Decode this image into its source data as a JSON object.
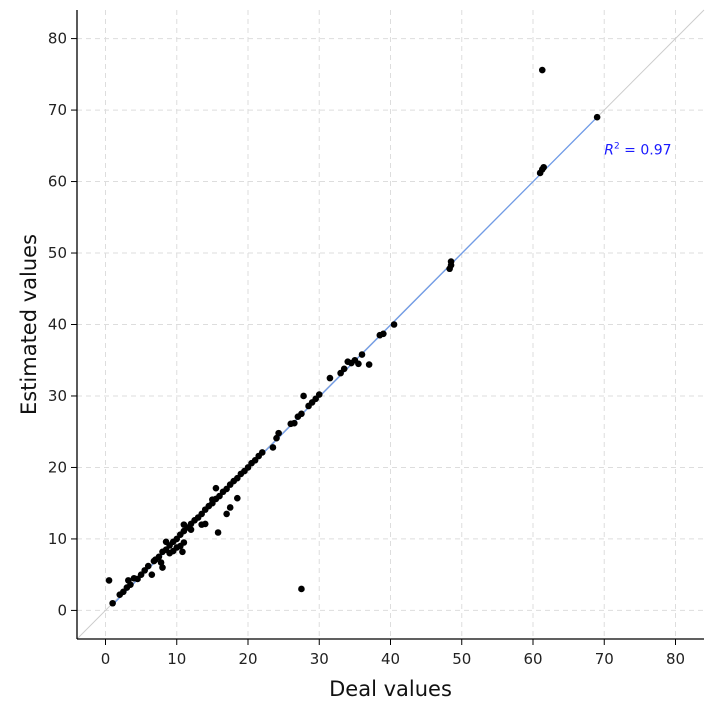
{
  "chart_data": {
    "type": "scatter",
    "xlabel": "Deal values",
    "ylabel": "Estimated values",
    "xlim": [
      -4,
      84
    ],
    "ylim": [
      -4,
      84
    ],
    "x_ticks": [
      0,
      10,
      20,
      30,
      40,
      50,
      60,
      70,
      80
    ],
    "y_ticks": [
      0,
      10,
      20,
      30,
      40,
      50,
      60,
      70,
      80
    ],
    "grid": true,
    "diagonal_reference": true,
    "fit_line": {
      "from": [
        1.2,
        1.0
      ],
      "to": [
        69,
        69
      ]
    },
    "annotation": {
      "prefix": "R",
      "sup": "2",
      "suffix": " = 0.97",
      "x": 70,
      "y": 64.5,
      "color": "#1a1aff"
    },
    "colors": {
      "points": "#000000",
      "fit": "#6f9be8",
      "diagonal": "#cccccc",
      "grid": "#dddddd"
    },
    "points": [
      [
        0.5,
        4.2
      ],
      [
        1.0,
        1.0
      ],
      [
        2.0,
        2.2
      ],
      [
        2.5,
        2.6
      ],
      [
        3.0,
        3.2
      ],
      [
        3.2,
        4.2
      ],
      [
        3.5,
        3.6
      ],
      [
        4.0,
        4.5
      ],
      [
        4.5,
        4.4
      ],
      [
        5.0,
        5.0
      ],
      [
        5.5,
        5.6
      ],
      [
        6.0,
        6.2
      ],
      [
        6.5,
        5.0
      ],
      [
        6.8,
        6.9
      ],
      [
        7.0,
        7.1
      ],
      [
        7.5,
        7.5
      ],
      [
        7.8,
        6.7
      ],
      [
        8.0,
        6.0
      ],
      [
        8.0,
        8.2
      ],
      [
        8.5,
        8.5
      ],
      [
        8.5,
        9.6
      ],
      [
        9.0,
        8.0
      ],
      [
        9.0,
        9.1
      ],
      [
        9.5,
        8.3
      ],
      [
        9.5,
        9.6
      ],
      [
        10.0,
        10.0
      ],
      [
        10.0,
        8.8
      ],
      [
        10.5,
        10.6
      ],
      [
        10.5,
        9.0
      ],
      [
        10.8,
        8.2
      ],
      [
        11.0,
        11.1
      ],
      [
        11.0,
        9.5
      ],
      [
        11.0,
        12.0
      ],
      [
        11.5,
        11.6
      ],
      [
        12.0,
        12.1
      ],
      [
        12.0,
        11.3
      ],
      [
        12.5,
        12.6
      ],
      [
        13.0,
        13.0
      ],
      [
        13.5,
        13.5
      ],
      [
        13.5,
        12.0
      ],
      [
        14.0,
        14.1
      ],
      [
        14.0,
        12.1
      ],
      [
        14.5,
        14.6
      ],
      [
        15.0,
        15.0
      ],
      [
        15.0,
        15.5
      ],
      [
        15.5,
        15.6
      ],
      [
        15.5,
        17.1
      ],
      [
        15.8,
        10.9
      ],
      [
        16.0,
        16.0
      ],
      [
        16.5,
        16.6
      ],
      [
        17.0,
        17.0
      ],
      [
        17.0,
        13.5
      ],
      [
        17.5,
        17.6
      ],
      [
        17.5,
        14.4
      ],
      [
        18.0,
        18.1
      ],
      [
        18.5,
        18.5
      ],
      [
        18.5,
        15.7
      ],
      [
        19.0,
        19.1
      ],
      [
        19.5,
        19.5
      ],
      [
        20.0,
        20.0
      ],
      [
        20.5,
        20.6
      ],
      [
        21.0,
        21.0
      ],
      [
        21.5,
        21.6
      ],
      [
        22.0,
        22.1
      ],
      [
        23.5,
        22.8
      ],
      [
        24.0,
        24.1
      ],
      [
        24.3,
        24.8
      ],
      [
        26.0,
        26.1
      ],
      [
        26.5,
        26.2
      ],
      [
        27.0,
        27.1
      ],
      [
        27.5,
        27.5
      ],
      [
        27.5,
        3.0
      ],
      [
        27.8,
        30.0
      ],
      [
        28.5,
        28.6
      ],
      [
        29.0,
        29.1
      ],
      [
        29.5,
        29.6
      ],
      [
        30.0,
        30.2
      ],
      [
        31.5,
        32.5
      ],
      [
        33.0,
        33.2
      ],
      [
        33.5,
        33.8
      ],
      [
        34.0,
        34.8
      ],
      [
        34.5,
        34.6
      ],
      [
        35.0,
        35.0
      ],
      [
        35.5,
        34.5
      ],
      [
        36.0,
        35.8
      ],
      [
        37.0,
        34.4
      ],
      [
        38.5,
        38.5
      ],
      [
        39.0,
        38.7
      ],
      [
        40.5,
        40.0
      ],
      [
        48.3,
        47.8
      ],
      [
        48.5,
        48.3
      ],
      [
        48.5,
        48.8
      ],
      [
        61.0,
        61.2
      ],
      [
        61.3,
        61.7
      ],
      [
        61.5,
        62.0
      ],
      [
        61.3,
        75.6
      ],
      [
        69.0,
        69.0
      ]
    ]
  }
}
